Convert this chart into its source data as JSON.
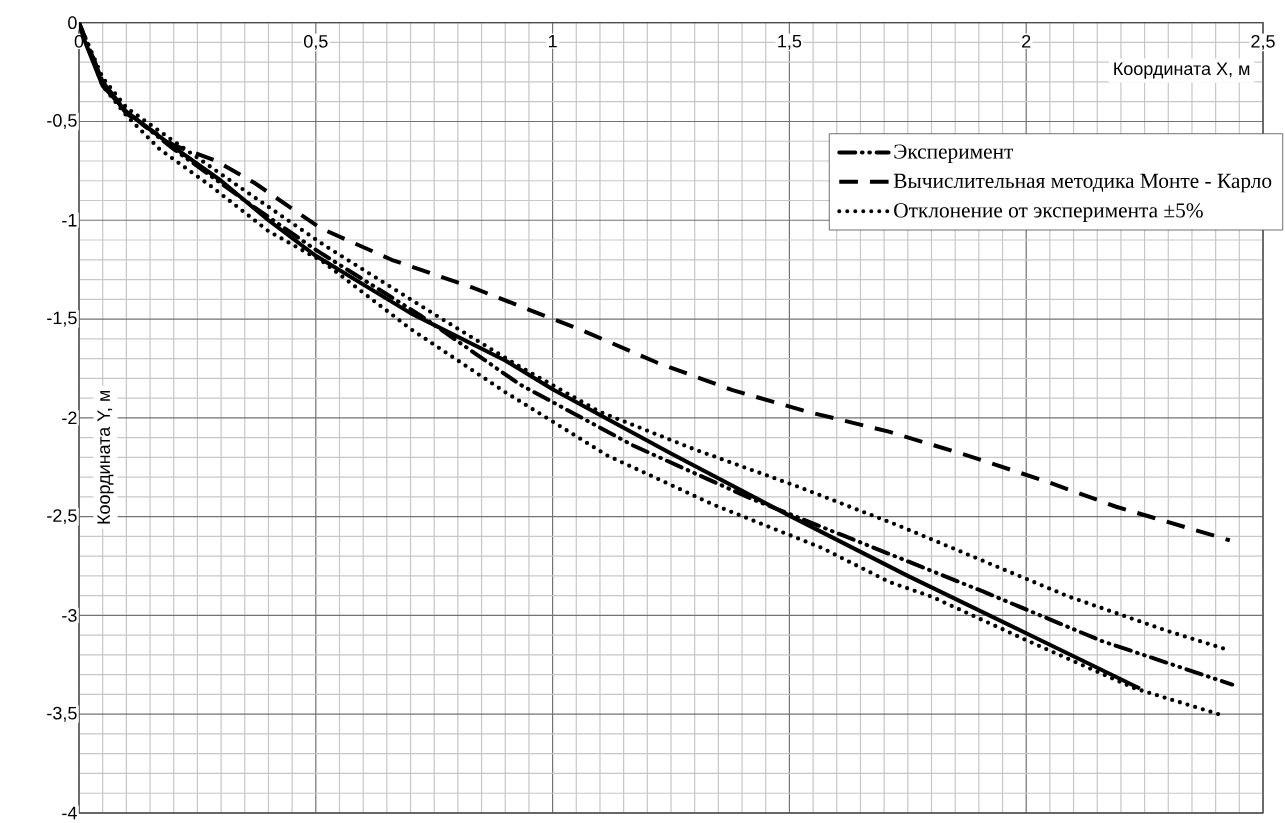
{
  "chart_data": {
    "type": "line",
    "xlabel": "Координата X, м",
    "ylabel": "Координата Y, м",
    "xlim": [
      0,
      2.5
    ],
    "ylim": [
      -4,
      0
    ],
    "xticks": [
      0,
      {
        "value": 0.5,
        "label": "0,5"
      },
      1,
      {
        "value": 1.5,
        "label": "1,5"
      },
      2,
      {
        "value": 2.5,
        "label": "2,5"
      }
    ],
    "yticks": [
      -4,
      {
        "value": -3.5,
        "label": "-3,5"
      },
      -3,
      {
        "value": -2.5,
        "label": "-2,5"
      },
      -2,
      {
        "value": -1.5,
        "label": "-1,5"
      },
      -1,
      {
        "value": -0.5,
        "label": "-0,5"
      },
      0
    ],
    "grid": true,
    "legend": "top right",
    "marker": "none",
    "series": [
      {
        "color": "#000000",
        "line_style": "solid",
        "x": [
          0,
          0.01,
          0.05,
          0.1,
          0.2,
          0.3,
          0.4,
          0.5,
          0.7,
          0.9,
          1.0,
          1.25,
          1.5,
          1.75,
          2.0,
          2.24
        ],
        "values": [
          0,
          -0.08,
          -0.32,
          -0.45,
          -0.63,
          -0.8,
          -1.0,
          -1.18,
          -1.47,
          -1.71,
          -1.855,
          -2.18,
          -2.495,
          -2.8,
          -3.09,
          -3.37
        ]
      },
      {
        "name": "Эксперимент",
        "color": "#000000",
        "line_style": "dashdotdotted",
        "x": [
          0,
          0.05,
          0.1,
          0.2,
          0.35,
          0.5,
          0.72,
          0.93,
          1.17,
          1.42,
          1.66,
          1.91,
          2.16,
          2.435
        ],
        "values": [
          0,
          -0.3,
          -0.45,
          -0.64,
          -0.9,
          -1.15,
          -1.48,
          -1.83,
          -2.14,
          -2.41,
          -2.64,
          -2.88,
          -3.13,
          -3.35
        ]
      },
      {
        "name": "Вычислительная методика Монте - Карло",
        "color": "#000000",
        "line_style": "dashed",
        "x": [
          0,
          0.05,
          0.1,
          0.2,
          0.29,
          0.37,
          0.51,
          0.66,
          0.83,
          1.065,
          1.22,
          1.38,
          1.54,
          1.71,
          1.875,
          2.04,
          2.19,
          2.43
        ],
        "values": [
          0,
          -0.3,
          -0.46,
          -0.62,
          -0.7,
          -0.81,
          -1.04,
          -1.2,
          -1.34,
          -1.56,
          -1.72,
          -1.86,
          -1.97,
          -2.07,
          -2.19,
          -2.32,
          -2.45,
          -2.62
        ]
      },
      {
        "name": "Отклонение от эксперимента ±5%",
        "color": "#000000",
        "line_style": "dotted",
        "x": [
          0,
          0.05,
          0.1,
          0.2,
          0.35,
          0.52,
          0.78,
          0.93,
          1.1,
          1.3,
          1.52,
          1.73,
          1.885,
          2.09,
          2.3,
          2.42
        ],
        "values": [
          0,
          -0.28,
          -0.43,
          -0.6,
          -0.85,
          -1.13,
          -1.52,
          -1.74,
          -1.97,
          -2.16,
          -2.35,
          -2.545,
          -2.7,
          -2.905,
          -3.08,
          -3.17
        ]
      },
      {
        "color": "#000000",
        "line_style": "dotted",
        "x": [
          0,
          0.05,
          0.1,
          0.17,
          0.28,
          0.4,
          0.515,
          0.7,
          0.9,
          1.115,
          1.34,
          1.57,
          1.71,
          1.8,
          2.0,
          2.23,
          2.42
        ],
        "values": [
          0,
          -0.32,
          -0.47,
          -0.64,
          -0.83,
          -1.055,
          -1.21,
          -1.55,
          -1.87,
          -2.19,
          -2.44,
          -2.66,
          -2.83,
          -2.905,
          -3.125,
          -3.37,
          -3.51
        ]
      }
    ]
  }
}
